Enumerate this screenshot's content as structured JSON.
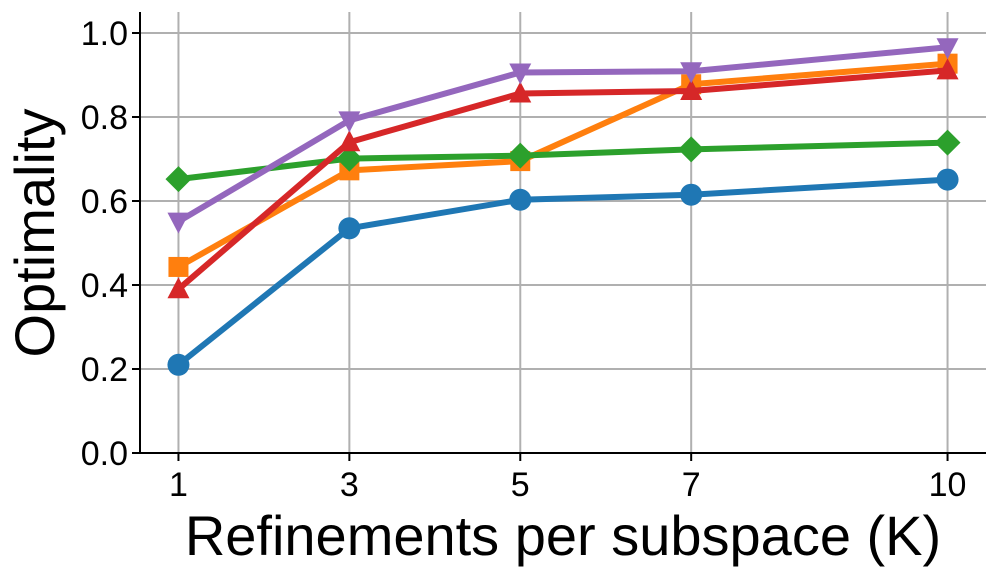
{
  "chart_data": {
    "type": "line",
    "title": "",
    "xlabel": "Refinements per subspace (K)",
    "ylabel": "Optimality",
    "x": [
      1,
      3,
      5,
      7,
      10
    ],
    "x_tick_labels": [
      "1",
      "3",
      "5",
      "7",
      "10"
    ],
    "y_tick_labels": [
      "0.0",
      "0.2",
      "0.4",
      "0.6",
      "0.8",
      "1.0"
    ],
    "y_ticks": [
      0.0,
      0.2,
      0.4,
      0.6,
      0.8,
      1.0
    ],
    "xlim": [
      0.55,
      10.45
    ],
    "ylim": [
      0.0,
      1.05
    ],
    "grid": true,
    "legend": "none",
    "series": [
      {
        "color": "#1f77b4",
        "marker": "circle",
        "values": [
          0.21,
          0.535,
          0.603,
          0.615,
          0.651
        ]
      },
      {
        "color": "#ff7f0e",
        "marker": "square",
        "values": [
          0.443,
          0.673,
          0.695,
          0.878,
          0.927
        ]
      },
      {
        "color": "#2ca02c",
        "marker": "diamond",
        "values": [
          0.652,
          0.701,
          0.708,
          0.723,
          0.739
        ]
      },
      {
        "color": "#d62728",
        "marker": "triangle-up",
        "values": [
          0.39,
          0.74,
          0.856,
          0.862,
          0.911
        ]
      },
      {
        "color": "#9467bd",
        "marker": "triangle-down",
        "values": [
          0.551,
          0.792,
          0.906,
          0.909,
          0.966
        ]
      }
    ]
  }
}
